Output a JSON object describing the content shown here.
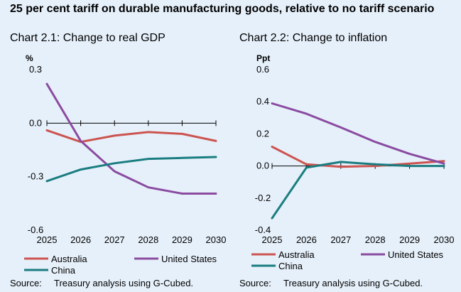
{
  "figure_title": "25 per cent tariff on durable manufacturing goods, relative to no tariff scenario",
  "colors": {
    "Australia": "#cc5450",
    "United States": "#8a4ba0",
    "China": "#1a7d80",
    "background": "#e6f0fa"
  },
  "chart_data": [
    {
      "type": "line",
      "title": "Chart 2.1: Change to real GDP",
      "ylabel": "%",
      "ylim": [
        -0.6,
        0.3
      ],
      "yticks": [
        0.3,
        0.0,
        -0.3,
        -0.6
      ],
      "ytick_labels": [
        "0.3",
        "0.0",
        "-0.3",
        "-0.6"
      ],
      "x": [
        2025,
        2026,
        2027,
        2028,
        2029,
        2030
      ],
      "xtick_labels": [
        "2025",
        "2026",
        "2027",
        "2028",
        "2029",
        "2030"
      ],
      "series": [
        {
          "name": "Australia",
          "values": [
            -0.04,
            -0.105,
            -0.07,
            -0.05,
            -0.06,
            -0.1
          ]
        },
        {
          "name": "United States",
          "values": [
            0.22,
            -0.1,
            -0.27,
            -0.36,
            -0.395,
            -0.395
          ]
        },
        {
          "name": "China",
          "values": [
            -0.325,
            -0.26,
            -0.225,
            -0.2,
            -0.195,
            -0.19
          ]
        }
      ],
      "source_label": "Source:",
      "source_text": "Treasury analysis using G-Cubed."
    },
    {
      "type": "line",
      "title": "Chart 2.2: Change to inflation",
      "ylabel": "Ppt",
      "ylim": [
        -0.4,
        0.6
      ],
      "yticks": [
        0.6,
        0.4,
        0.2,
        0.0,
        -0.2,
        -0.4
      ],
      "ytick_labels": [
        "0.6",
        "0.4",
        "0.2",
        "0.0",
        "-0.2",
        "-0.4"
      ],
      "x": [
        2025,
        2026,
        2027,
        2028,
        2029,
        2030
      ],
      "xtick_labels": [
        "2025",
        "2026",
        "2027",
        "2028",
        "2029",
        "2030"
      ],
      "series": [
        {
          "name": "Australia",
          "values": [
            0.12,
            0.01,
            -0.005,
            0.0,
            0.015,
            0.03
          ]
        },
        {
          "name": "United States",
          "values": [
            0.39,
            0.325,
            0.24,
            0.15,
            0.075,
            0.015
          ]
        },
        {
          "name": "China",
          "values": [
            -0.325,
            -0.01,
            0.025,
            0.01,
            0.0,
            0.0
          ]
        }
      ],
      "source_label": "Source:",
      "source_text": "Treasury analysis using G-Cubed."
    }
  ]
}
